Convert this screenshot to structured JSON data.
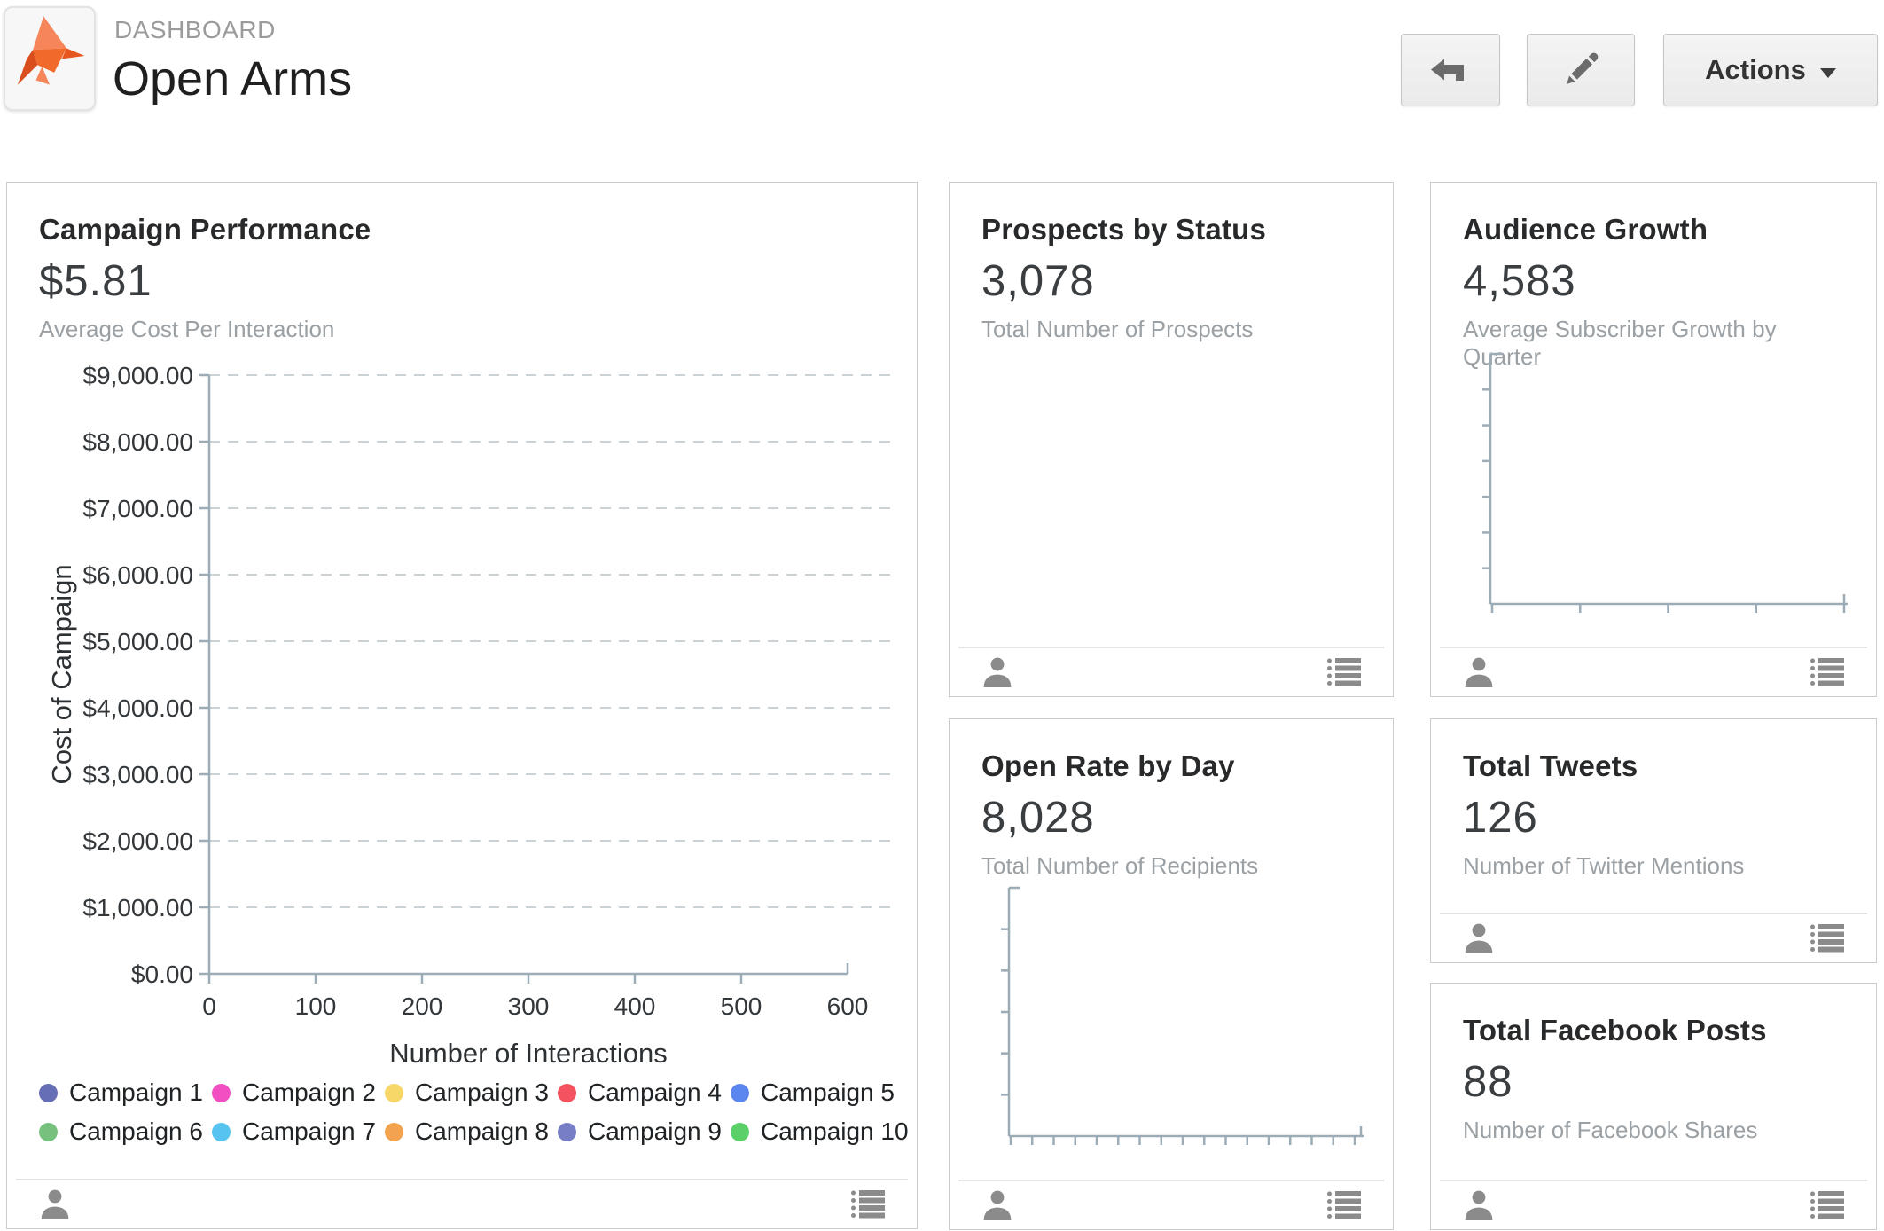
{
  "header": {
    "breadcrumb": "DASHBOARD",
    "title": "Open Arms",
    "actions_label": "Actions"
  },
  "cards": {
    "campaign_performance": {
      "title": "Campaign Performance",
      "value": "$5.81",
      "subtitle": "Average Cost Per Interaction"
    },
    "prospects": {
      "title": "Prospects by Status",
      "value": "3,078",
      "subtitle": "Total Number of Prospects"
    },
    "audience": {
      "title": "Audience Growth",
      "value": "4,583",
      "subtitle": "Average Subscriber Growth by Quarter"
    },
    "open_rate": {
      "title": "Open Rate by Day",
      "value": "8,028",
      "subtitle": "Total Number of Recipients"
    },
    "tweets": {
      "title": "Total Tweets",
      "value": "126",
      "subtitle": "Number of Twitter Mentions"
    },
    "facebook": {
      "title": "Total Facebook Posts",
      "value": "88",
      "subtitle": "Number of Facebook Shares"
    }
  },
  "colors": {
    "accent_orange": "#F26B24",
    "axis": "#9BACB6",
    "grid": "#CBD2D6"
  },
  "chart_data": [
    {
      "id": "campaign_performance",
      "type": "scatter",
      "title": "Campaign Performance",
      "xlabel": "Number of Interactions",
      "ylabel": "Cost of Campaign",
      "xlim": [
        0,
        600
      ],
      "ylim": [
        0,
        9000
      ],
      "x_tick_labels": [
        "0",
        "100",
        "200",
        "300",
        "400",
        "500",
        "600"
      ],
      "y_tick_labels": [
        "$9,000.00",
        "$8,000.00",
        "$7,000.00",
        "$6,000.00",
        "$5,000.00",
        "$4,000.00",
        "$3,000.00",
        "$2,000.00",
        "$1,000.00",
        "$0.00"
      ],
      "grid": "horizontal-dashed",
      "legend_position": "bottom",
      "series": [
        {
          "name": "Campaign 1",
          "color": "#666FB5",
          "points": []
        },
        {
          "name": "Campaign 2",
          "color": "#F24FC3",
          "points": []
        },
        {
          "name": "Campaign 3",
          "color": "#F6D767",
          "points": []
        },
        {
          "name": "Campaign 4",
          "color": "#F5525F",
          "points": []
        },
        {
          "name": "Campaign 5",
          "color": "#5B86EF",
          "points": []
        },
        {
          "name": "Campaign 6",
          "color": "#76C17D",
          "points": []
        },
        {
          "name": "Campaign 7",
          "color": "#57C4F0",
          "points": []
        },
        {
          "name": "Campaign 8",
          "color": "#F3A250",
          "points": []
        },
        {
          "name": "Campaign 9",
          "color": "#777EC6",
          "points": []
        },
        {
          "name": "Campaign 10",
          "color": "#5BCF68",
          "points": []
        }
      ]
    },
    {
      "id": "audience_growth",
      "type": "line",
      "xlabel": "",
      "ylabel": "",
      "x_tick_count": 5,
      "y_tick_count": 6,
      "series": []
    },
    {
      "id": "open_rate_by_day",
      "type": "line",
      "xlabel": "",
      "ylabel": "",
      "x_tick_count": 17,
      "y_tick_count": 5,
      "series": []
    }
  ]
}
